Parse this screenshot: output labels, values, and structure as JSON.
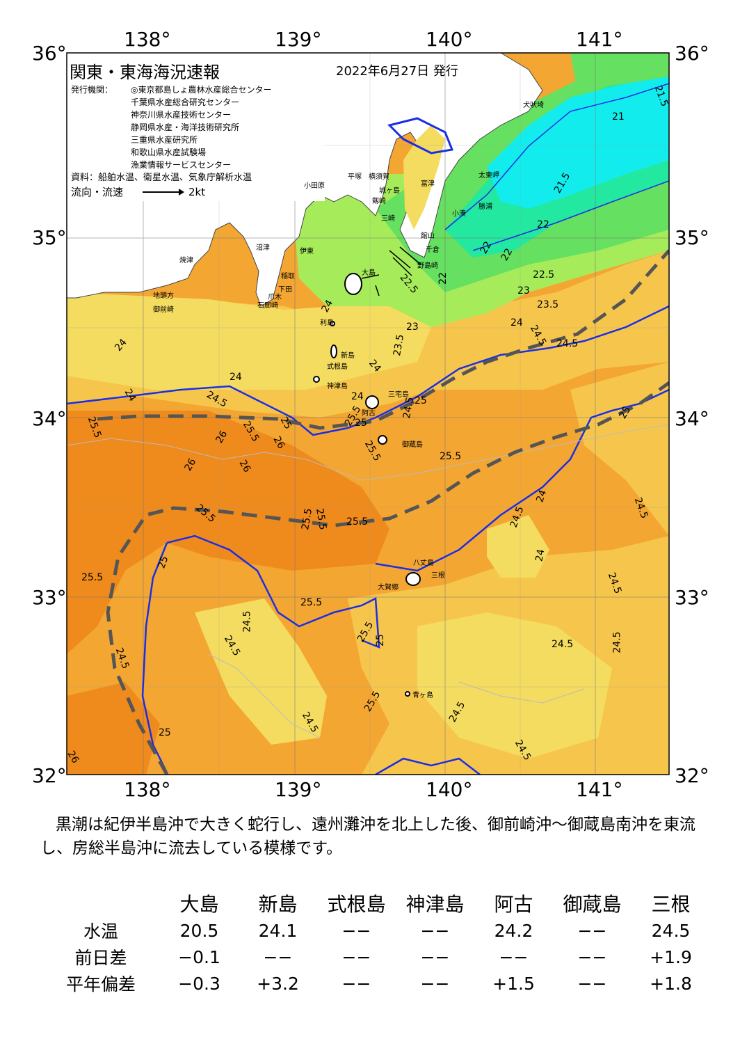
{
  "header": {
    "title": "関東・東海海況速報",
    "date": "2022年6月27日 発行",
    "issuers_label": "発行機関：",
    "issuers": [
      "◎東京都島しょ農林水産総合センター",
      "千葉県水産総合研究センター",
      "神奈川県水産技術センター",
      "静岡県水産・海洋技術研究所",
      "三重県水産研究所",
      "和歌山県水産試験場",
      "漁業情報サービスセンター"
    ],
    "data_source": "資料：船舶水温、衛星水温、気象庁解析水温",
    "flow_legend_label": "流向・流速",
    "flow_legend_value": "2kt"
  },
  "map": {
    "lon_labels": [
      "138°",
      "139°",
      "140°",
      "141°"
    ],
    "lat_labels": [
      "36°",
      "35°",
      "34°",
      "33°",
      "32°"
    ],
    "colors": {
      "land": "#ffffff",
      "t_cold": "#12ecec",
      "t_cyan_green": "#22e8a0",
      "t_green": "#66e060",
      "t_yellowgreen": "#a6ec5a",
      "t_yellow": "#f4dc60",
      "t_lightorange": "#f6c64c",
      "t_orange": "#f4a632",
      "t_deeporange": "#ef8a1c",
      "kuroshio_axis": "#555555",
      "isotherm_24": "#1a2ee6"
    },
    "place_names": [
      "犬吠埼",
      "太東岬",
      "勝浦",
      "小湊",
      "館山",
      "千倉",
      "野島崎",
      "富津",
      "横須賀",
      "城ヶ島",
      "剱崎",
      "三崎",
      "平塚",
      "小田原",
      "沼津",
      "伊東",
      "焼津",
      "稲取",
      "下田",
      "爪木",
      "石廊崎",
      "御前崎",
      "地頭方",
      "大島",
      "利島",
      "新島",
      "式根島",
      "神津島",
      "三宅島",
      "阿古",
      "御蔵島",
      "八丈島",
      "三根",
      "大賀郷",
      "青ヶ島"
    ],
    "isotherm_labels": [
      "21.5",
      "21",
      "21.5",
      "22",
      "22",
      "22",
      "22.5",
      "22.5",
      "22",
      "23",
      "23.5",
      "23",
      "24",
      "24.5",
      "24.5",
      "23.5",
      "24",
      "24",
      "24",
      "24",
      "24",
      "24",
      "24.5",
      "25",
      "25",
      "25",
      "25.5",
      "25.5",
      "26",
      "26",
      "26",
      "26",
      "24.5",
      "25",
      "25.5",
      "25.5",
      "25.5",
      "25.5",
      "25.5",
      "25.5",
      "25.5",
      "25",
      "24.5",
      "24.5",
      "24",
      "24",
      "24.5",
      "24.5",
      "24.5",
      "24.5",
      "25.5",
      "24.5",
      "24.5",
      "24.5",
      "24.5",
      "24.5",
      "25",
      "26",
      "25.5",
      "25.5",
      "25.5",
      "25"
    ]
  },
  "summary": "黒潮は紀伊半島沖で大きく蛇行し、遠州灘沖を北上した後、御前崎沖～御蔵島南沖を東流し、房総半島沖に流去している模様です。",
  "observation_table": {
    "stations": [
      "大島",
      "新島",
      "式根島",
      "神津島",
      "阿古",
      "御蔵島",
      "三根"
    ],
    "rows": [
      {
        "label": "水温",
        "values": [
          "20.5",
          "24.1",
          "−−",
          "−−",
          "24.2",
          "−−",
          "24.5"
        ]
      },
      {
        "label": "前日差",
        "values": [
          "−0.1",
          "−−",
          "−−",
          "−−",
          "−−",
          "−−",
          "+1.9"
        ]
      },
      {
        "label": "平年偏差",
        "values": [
          "−0.3",
          "+3.2",
          "−−",
          "−−",
          "+1.5",
          "−−",
          "+1.8"
        ]
      }
    ]
  }
}
